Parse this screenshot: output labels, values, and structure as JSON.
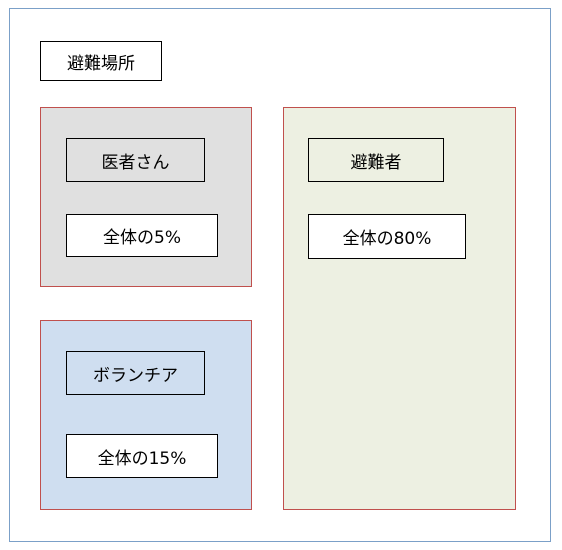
{
  "title": "避難場所",
  "groups": {
    "doctors": {
      "name": "医者さん",
      "share": "全体の5%"
    },
    "volunteers": {
      "name": "ボランチア",
      "share": "全体の15%"
    },
    "evacuees": {
      "name": "避難者",
      "share": "全体の80%"
    }
  },
  "colors": {
    "outer_border": "#7ba0c8",
    "group_border": "#c0504d",
    "doctors_fill": "#e0e0e0",
    "volunteers_fill": "#cfdef0",
    "evacuees_fill": "#edf0e2"
  }
}
